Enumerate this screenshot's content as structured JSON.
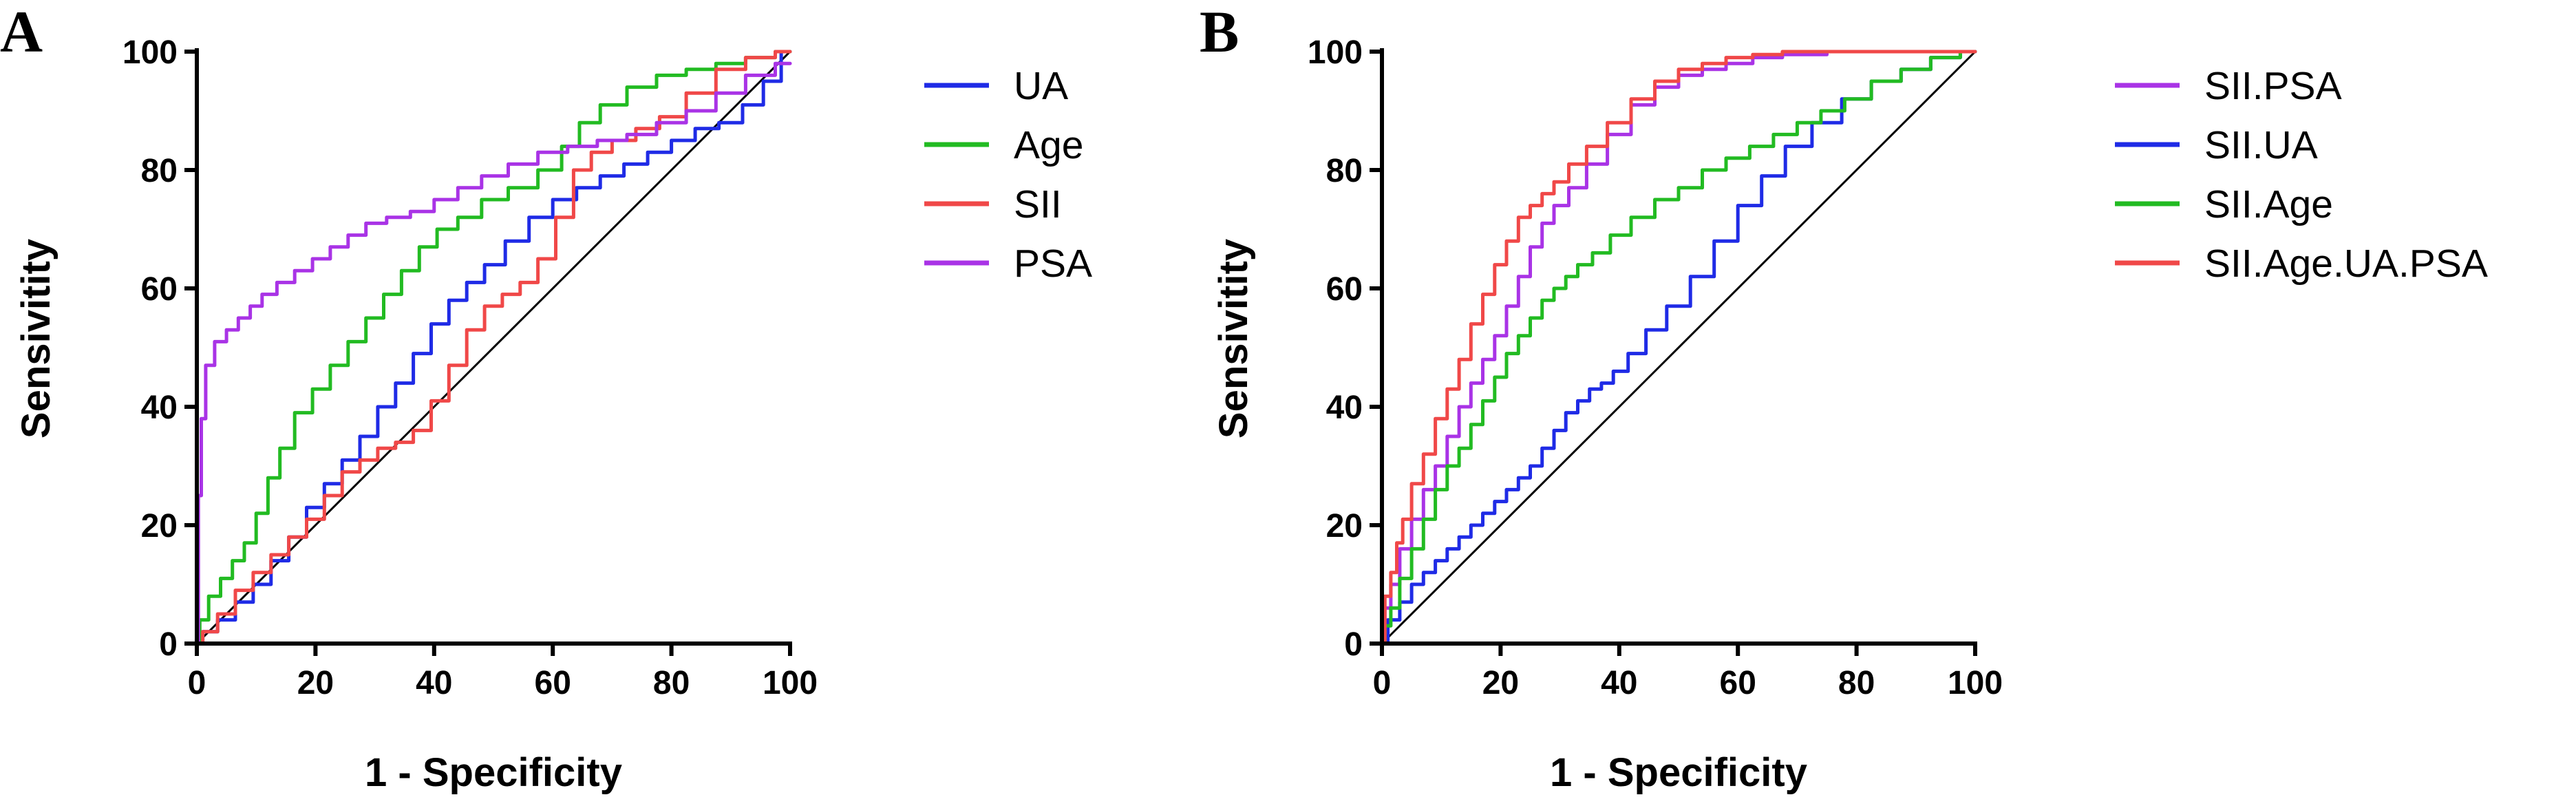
{
  "colors": {
    "blue": "#1f2be6",
    "green": "#22bb22",
    "red": "#f04848",
    "purple": "#a933e6",
    "axis": "#000000"
  },
  "chart_data": [
    {
      "panel": "A",
      "type": "line",
      "title": "",
      "xlabel": "1 - Specificity",
      "ylabel": "Sensivitity",
      "xlim": [
        0,
        100
      ],
      "ylim": [
        0,
        100
      ],
      "xticks": [
        "0",
        "20",
        "40",
        "60",
        "80",
        "100"
      ],
      "yticks": [
        "0",
        "20",
        "40",
        "60",
        "80",
        "100"
      ],
      "grid": false,
      "legend_position": "right",
      "reference_line": [
        [
          0,
          0
        ],
        [
          100,
          100
        ]
      ],
      "series": [
        {
          "name": "UA",
          "color": "#1f2be6",
          "x": [
            0,
            2,
            5,
            8,
            11,
            14,
            17,
            20,
            23,
            26,
            29,
            32,
            35,
            38,
            41,
            44,
            47,
            50,
            54,
            58,
            62,
            66,
            70,
            74,
            78,
            82,
            86,
            90,
            94,
            97,
            100
          ],
          "y": [
            0,
            2,
            4,
            7,
            10,
            14,
            18,
            23,
            27,
            31,
            35,
            40,
            44,
            49,
            54,
            58,
            61,
            64,
            68,
            72,
            75,
            77,
            79,
            81,
            83,
            85,
            87,
            88,
            91,
            95,
            100
          ]
        },
        {
          "name": "Age",
          "color": "#22bb22",
          "x": [
            0,
            1,
            3,
            5,
            7,
            9,
            11,
            13,
            15,
            18,
            21,
            24,
            27,
            30,
            33,
            36,
            39,
            42,
            46,
            50,
            55,
            60,
            63,
            66,
            70,
            75,
            80,
            85,
            90,
            95,
            100
          ],
          "y": [
            0,
            4,
            8,
            11,
            14,
            17,
            22,
            28,
            33,
            39,
            43,
            47,
            51,
            55,
            59,
            63,
            67,
            70,
            72,
            75,
            77,
            80,
            84,
            88,
            91,
            94,
            96,
            97,
            98,
            99,
            100
          ]
        },
        {
          "name": "SII",
          "color": "#f04848",
          "x": [
            0,
            2,
            5,
            8,
            11,
            14,
            17,
            20,
            23,
            26,
            29,
            32,
            35,
            38,
            41,
            44,
            47,
            50,
            53,
            56,
            59,
            62,
            65,
            68,
            72,
            76,
            80,
            85,
            90,
            95,
            100
          ],
          "y": [
            0,
            2,
            5,
            9,
            12,
            15,
            18,
            21,
            25,
            29,
            31,
            33,
            34,
            36,
            41,
            47,
            53,
            57,
            59,
            61,
            65,
            72,
            80,
            83,
            85,
            87,
            89,
            93,
            97,
            99,
            100
          ]
        },
        {
          "name": "PSA",
          "color": "#a933e6",
          "x": [
            0,
            0.5,
            1,
            2,
            4,
            6,
            8,
            10,
            12,
            15,
            18,
            21,
            24,
            27,
            30,
            34,
            38,
            42,
            46,
            50,
            55,
            60,
            65,
            70,
            75,
            80,
            85,
            90,
            95,
            100
          ],
          "y": [
            0,
            25,
            38,
            47,
            51,
            53,
            55,
            57,
            59,
            61,
            63,
            65,
            67,
            69,
            71,
            72,
            73,
            75,
            77,
            79,
            81,
            83,
            84,
            85,
            86,
            88,
            90,
            93,
            96,
            98
          ]
        }
      ]
    },
    {
      "panel": "B",
      "type": "line",
      "title": "",
      "xlabel": "1 - Specificity",
      "ylabel": "Sensivitity",
      "xlim": [
        0,
        100
      ],
      "ylim": [
        0,
        100
      ],
      "xticks": [
        "0",
        "20",
        "40",
        "60",
        "80",
        "100"
      ],
      "yticks": [
        "0",
        "20",
        "40",
        "60",
        "80",
        "100"
      ],
      "grid": false,
      "legend_position": "right",
      "reference_line": [
        [
          0,
          0
        ],
        [
          100,
          100
        ]
      ],
      "series": [
        {
          "name": "SII.PSA",
          "color": "#a933e6",
          "x": [
            0,
            1,
            2,
            4,
            6,
            8,
            10,
            12,
            14,
            16,
            18,
            20,
            22,
            24,
            26,
            28,
            30,
            33,
            36,
            40,
            44,
            48,
            52,
            56,
            60,
            65,
            70,
            80,
            90,
            100
          ],
          "y": [
            0,
            6,
            10,
            16,
            21,
            26,
            30,
            35,
            40,
            44,
            48,
            52,
            57,
            62,
            67,
            71,
            74,
            77,
            81,
            86,
            91,
            94,
            96,
            97,
            98,
            99,
            99.5,
            100,
            100,
            100
          ]
        },
        {
          "name": "SII.UA",
          "color": "#1f2be6",
          "x": [
            0,
            2,
            4,
            6,
            8,
            10,
            12,
            14,
            16,
            18,
            20,
            22,
            24,
            26,
            28,
            30,
            32,
            34,
            36,
            38,
            40,
            43,
            46,
            50,
            54,
            58,
            62,
            66,
            70,
            75,
            80,
            85,
            90,
            95,
            100
          ],
          "y": [
            0,
            4,
            7,
            10,
            12,
            14,
            16,
            18,
            20,
            22,
            24,
            26,
            28,
            30,
            33,
            36,
            39,
            41,
            43,
            44,
            46,
            49,
            53,
            57,
            62,
            68,
            74,
            79,
            84,
            88,
            92,
            95,
            97,
            99,
            100
          ]
        },
        {
          "name": "SII.Age",
          "color": "#22bb22",
          "x": [
            0,
            1,
            2,
            4,
            6,
            8,
            10,
            12,
            14,
            16,
            18,
            20,
            22,
            24,
            26,
            28,
            30,
            32,
            34,
            37,
            40,
            44,
            48,
            52,
            56,
            60,
            64,
            68,
            72,
            76,
            80,
            85,
            90,
            95,
            100
          ],
          "y": [
            0,
            3,
            6,
            11,
            16,
            21,
            26,
            30,
            33,
            37,
            41,
            45,
            49,
            52,
            55,
            58,
            60,
            62,
            64,
            66,
            69,
            72,
            75,
            77,
            80,
            82,
            84,
            86,
            88,
            90,
            92,
            95,
            97,
            99,
            100
          ]
        },
        {
          "name": "SII.Age.UA.PSA",
          "color": "#f04848",
          "x": [
            0,
            1,
            2,
            3,
            4,
            6,
            8,
            10,
            12,
            14,
            16,
            18,
            20,
            22,
            24,
            26,
            28,
            30,
            33,
            36,
            40,
            44,
            48,
            52,
            56,
            60,
            65,
            70,
            80,
            90,
            100
          ],
          "y": [
            0,
            8,
            12,
            17,
            21,
            27,
            32,
            38,
            43,
            48,
            54,
            59,
            64,
            68,
            72,
            74,
            76,
            78,
            81,
            84,
            88,
            92,
            95,
            97,
            98,
            99,
            99.5,
            100,
            100,
            100,
            100
          ]
        }
      ]
    }
  ]
}
